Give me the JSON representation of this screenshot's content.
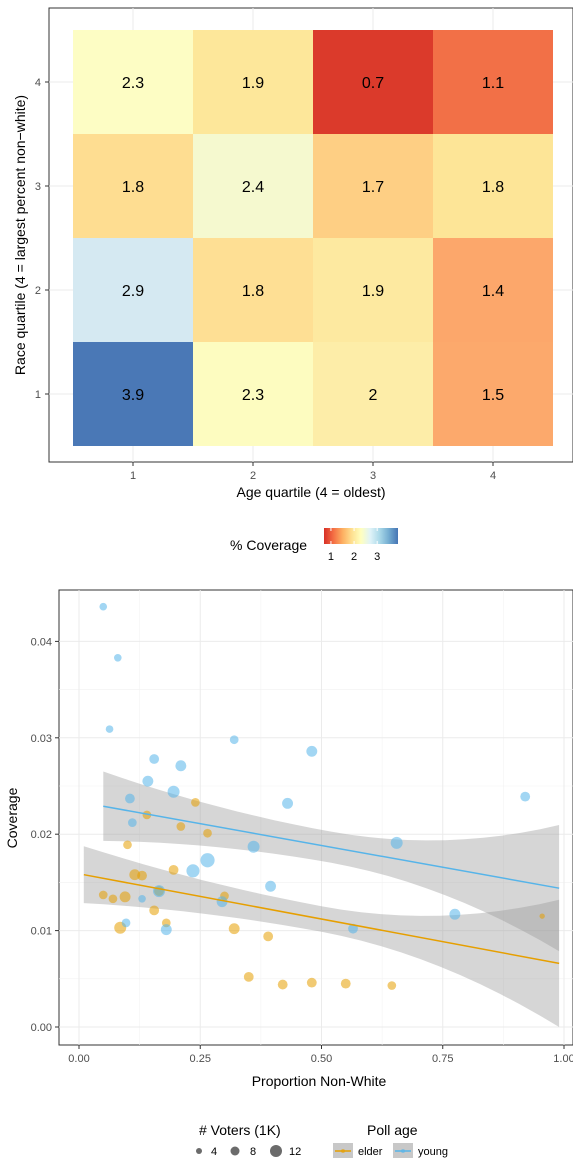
{
  "chart_data": [
    {
      "type": "heatmap",
      "xlabel": "Age quartile (4 = oldest)",
      "ylabel": "Race quartile (4 = largest percent non−white)",
      "x_categories": [
        "1",
        "2",
        "3",
        "4"
      ],
      "y_categories": [
        "1",
        "2",
        "3",
        "4"
      ],
      "cells": [
        {
          "x": "1",
          "y": "4",
          "value": "2.3",
          "color": "#fdfdc4"
        },
        {
          "x": "2",
          "y": "4",
          "value": "1.9",
          "color": "#fde79a"
        },
        {
          "x": "3",
          "y": "4",
          "value": "0.7",
          "color": "#db3a2b"
        },
        {
          "x": "4",
          "y": "4",
          "value": "1.1",
          "color": "#f27047"
        },
        {
          "x": "1",
          "y": "3",
          "value": "1.8",
          "color": "#fedd91"
        },
        {
          "x": "2",
          "y": "3",
          "value": "2.4",
          "color": "#f5f9cf"
        },
        {
          "x": "3",
          "y": "3",
          "value": "1.7",
          "color": "#fecf84"
        },
        {
          "x": "4",
          "y": "3",
          "value": "1.8",
          "color": "#fde597"
        },
        {
          "x": "1",
          "y": "2",
          "value": "2.9",
          "color": "#d5e9f2"
        },
        {
          "x": "2",
          "y": "2",
          "value": "1.8",
          "color": "#fedf94"
        },
        {
          "x": "3",
          "y": "2",
          "value": "1.9",
          "color": "#fde9a0"
        },
        {
          "x": "4",
          "y": "2",
          "value": "1.4",
          "color": "#fca76b"
        },
        {
          "x": "1",
          "y": "1",
          "value": "3.9",
          "color": "#4a78b6"
        },
        {
          "x": "2",
          "y": "1",
          "value": "2.3",
          "color": "#fdfcc0"
        },
        {
          "x": "3",
          "y": "1",
          "value": "2",
          "color": "#fdeda8"
        },
        {
          "x": "4",
          "y": "1",
          "value": "1.5",
          "color": "#fca96c"
        }
      ],
      "legend": {
        "title": "% Coverage",
        "position": "bottom",
        "ticks": [
          "1",
          "2",
          "3"
        ],
        "range": [
          0.7,
          3.9
        ],
        "colors": [
          "#d73027",
          "#f46d43",
          "#fdae61",
          "#fee090",
          "#ffffbf",
          "#e0f3f8",
          "#abd9e9",
          "#74add1",
          "#4575b4"
        ]
      }
    },
    {
      "type": "scatter",
      "xlabel": "Proportion Non-White",
      "ylabel": "Coverage",
      "xlim": [
        -0.05,
        1.0
      ],
      "ylim": [
        -0.004,
        0.045
      ],
      "x_ticks": [
        "0.00",
        "0.25",
        "0.50",
        "0.75",
        "1.00"
      ],
      "y_ticks": [
        "0.00",
        "0.01",
        "0.02",
        "0.03",
        "0.04"
      ],
      "grid": true,
      "series": [
        {
          "name": "elder",
          "color": "#e69f00",
          "points": [
            [
              0.05,
              0.0137,
              5
            ],
            [
              0.07,
              0.0133,
              5
            ],
            [
              0.085,
              0.0103,
              8
            ],
            [
              0.095,
              0.0135,
              7
            ],
            [
              0.1,
              0.0189,
              5
            ],
            [
              0.115,
              0.0158,
              7
            ],
            [
              0.13,
              0.0157,
              6
            ],
            [
              0.14,
              0.022,
              5
            ],
            [
              0.155,
              0.0121,
              6
            ],
            [
              0.165,
              0.0141,
              6
            ],
            [
              0.18,
              0.0108,
              5
            ],
            [
              0.195,
              0.0163,
              6
            ],
            [
              0.21,
              0.0208,
              5
            ],
            [
              0.24,
              0.0233,
              5
            ],
            [
              0.265,
              0.0201,
              5
            ],
            [
              0.3,
              0.0136,
              5
            ],
            [
              0.32,
              0.0102,
              7
            ],
            [
              0.35,
              0.0052,
              6
            ],
            [
              0.39,
              0.0094,
              6
            ],
            [
              0.42,
              0.0044,
              6
            ],
            [
              0.48,
              0.0046,
              6
            ],
            [
              0.55,
              0.0045,
              6
            ],
            [
              0.645,
              0.0043,
              5
            ],
            [
              0.955,
              0.0115,
              2
            ]
          ],
          "trend": {
            "x": [
              0.01,
              0.99
            ],
            "y": [
              0.0158,
              0.0066
            ],
            "se_lower": [
              0.0128,
              0.0003
            ],
            "se_upper": [
              0.0187,
              0.0135
            ]
          }
        },
        {
          "name": "young",
          "color": "#56b4e9",
          "points": [
            [
              0.05,
              0.0436,
              4
            ],
            [
              0.063,
              0.0309,
              4
            ],
            [
              0.08,
              0.0383,
              4
            ],
            [
              0.097,
              0.0108,
              5
            ],
            [
              0.105,
              0.0237,
              6
            ],
            [
              0.11,
              0.0212,
              5
            ],
            [
              0.13,
              0.0133,
              4
            ],
            [
              0.142,
              0.0255,
              7
            ],
            [
              0.155,
              0.0278,
              6
            ],
            [
              0.165,
              0.0141,
              8
            ],
            [
              0.18,
              0.0101,
              7
            ],
            [
              0.195,
              0.0244,
              8
            ],
            [
              0.21,
              0.0271,
              7
            ],
            [
              0.235,
              0.0162,
              9
            ],
            [
              0.265,
              0.0173,
              10
            ],
            [
              0.295,
              0.013,
              7
            ],
            [
              0.32,
              0.0298,
              5
            ],
            [
              0.36,
              0.0187,
              8
            ],
            [
              0.395,
              0.0146,
              7
            ],
            [
              0.43,
              0.0232,
              7
            ],
            [
              0.48,
              0.0286,
              7
            ],
            [
              0.565,
              0.0102,
              6
            ],
            [
              0.655,
              0.0191,
              8
            ],
            [
              0.775,
              0.0117,
              7
            ],
            [
              0.92,
              0.0239,
              6
            ]
          ],
          "trend": {
            "x": [
              0.05,
              0.99
            ],
            "y": [
              0.0229,
              0.0144
            ],
            "se_lower": [
              0.0193,
              0.0078
            ],
            "se_upper": [
              0.0265,
              0.0209
            ]
          }
        }
      ],
      "legend": {
        "position": "bottom",
        "size_title": "# Voters (1K)",
        "size_values": [
          "4",
          "8",
          "12"
        ],
        "color_title": "Poll age",
        "color_values": [
          "elder",
          "young"
        ]
      }
    }
  ]
}
